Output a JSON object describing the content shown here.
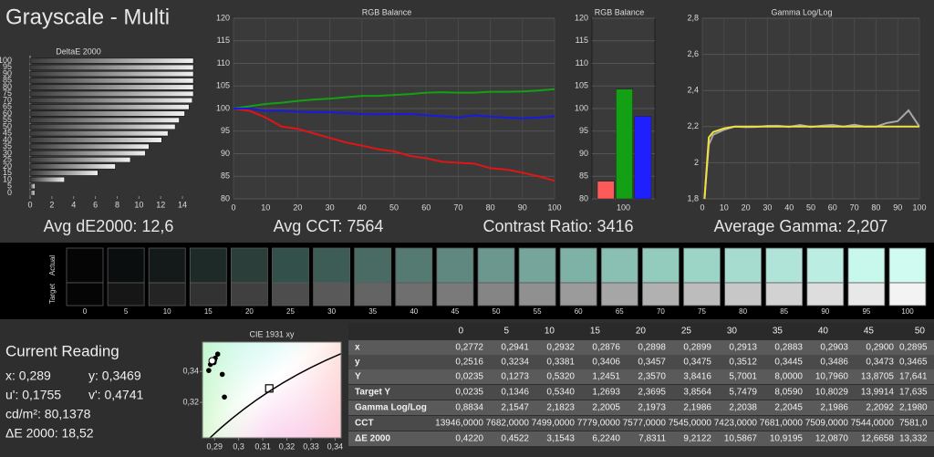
{
  "title": "Grayscale - Multi",
  "summary": [
    "Avg dE2000: 12,6",
    "Avg CCT: 7564",
    "Contrast Ratio: 3416",
    "Average Gamma: 2,207"
  ],
  "chart_data": [
    {
      "type": "bar",
      "orientation": "horizontal",
      "title": "DeltaE 2000",
      "categories": [
        "0",
        "5",
        "10",
        "15",
        "20",
        "25",
        "30",
        "35",
        "40",
        "45",
        "50",
        "55",
        "60",
        "65",
        "70",
        "75",
        "80",
        "85",
        "90",
        "95",
        "100"
      ],
      "values": [
        0.422,
        0.4522,
        3.1543,
        6.224,
        7.8311,
        9.2122,
        10.5867,
        10.9195,
        12.087,
        12.6658,
        13.33,
        13.7,
        14.2,
        14.6,
        14.9,
        15,
        15,
        15,
        15,
        15,
        15
      ],
      "color": "#f0f0f0",
      "xlim": [
        0,
        15
      ],
      "xticks": [
        0,
        2,
        4,
        6,
        8,
        10,
        12,
        14
      ],
      "grid": false
    },
    {
      "type": "line",
      "title": "RGB Balance",
      "x": [
        0,
        5,
        10,
        15,
        20,
        25,
        30,
        35,
        40,
        45,
        50,
        55,
        60,
        65,
        70,
        75,
        80,
        85,
        90,
        95,
        100
      ],
      "series": [
        {
          "color": "#e01515",
          "values": [
            100,
            99.5,
            98,
            96,
            95.5,
            94.5,
            93.5,
            92.5,
            91.8,
            91,
            90.5,
            89.5,
            89,
            88.2,
            88,
            87.8,
            86.8,
            86.5,
            85.8,
            85,
            84
          ]
        },
        {
          "color": "#14a014",
          "values": [
            100,
            100.5,
            101,
            101.3,
            101.7,
            102,
            102.2,
            102.5,
            102.8,
            102.8,
            103,
            103.2,
            103.5,
            103.6,
            103.5,
            103.5,
            103.7,
            103.7,
            103.8,
            104,
            104.3
          ]
        },
        {
          "color": "#1a1ae0",
          "values": [
            100,
            100,
            99.5,
            99.5,
            99.3,
            99.2,
            99.2,
            99,
            98.8,
            98.7,
            98.8,
            98.8,
            98.5,
            98.3,
            98,
            98.5,
            98.2,
            98,
            97.8,
            98,
            98.3
          ]
        }
      ],
      "xlim": [
        0,
        100
      ],
      "xticks": [
        0,
        10,
        20,
        30,
        40,
        50,
        60,
        70,
        80,
        90,
        100
      ],
      "ylim": [
        80,
        120
      ],
      "yticks": [
        80,
        85,
        90,
        95,
        100,
        105,
        110,
        115,
        120
      ],
      "grid": true
    },
    {
      "type": "bar",
      "title": "RGB Balance",
      "categories": [
        "100"
      ],
      "series": [
        {
          "color": "#ff5a5a",
          "values": [
            83.9
          ]
        },
        {
          "color": "#14a014",
          "values": [
            104.3
          ]
        },
        {
          "color": "#2020ff",
          "values": [
            98.3
          ]
        }
      ],
      "ylim": [
        80,
        120
      ],
      "yticks": [
        80,
        85,
        90,
        95,
        100,
        105,
        110,
        115,
        120
      ],
      "grid": true
    },
    {
      "type": "line",
      "title": "Gamma Log/Log",
      "x": [
        1,
        3,
        5,
        10,
        15,
        20,
        25,
        30,
        35,
        40,
        45,
        50,
        55,
        60,
        65,
        70,
        75,
        80,
        85,
        90,
        95,
        100
      ],
      "series": [
        {
          "color": "#a8a8a8",
          "values": [
            1.8,
            2.1,
            2.1547,
            2.1823,
            2.2005,
            2.1973,
            2.1986,
            2.2038,
            2.2045,
            2.1986,
            2.2092,
            2.198,
            2.205,
            2.21,
            2.2,
            2.21,
            2.2,
            2.2,
            2.22,
            2.23,
            2.29,
            2.2
          ]
        },
        {
          "color": "#f0e040",
          "values": [
            1.8,
            2.14,
            2.17,
            2.19,
            2.2,
            2.2,
            2.2,
            2.2,
            2.2,
            2.2,
            2.2,
            2.2,
            2.2,
            2.2,
            2.2,
            2.2,
            2.2,
            2.2,
            2.2,
            2.2,
            2.2,
            2.2
          ]
        }
      ],
      "xlim": [
        0,
        100
      ],
      "xticks": [
        0,
        10,
        20,
        30,
        40,
        50,
        60,
        70,
        80,
        90,
        100
      ],
      "ylim": [
        1.8,
        2.8
      ],
      "yticks": [
        {
          "value": 1.8,
          "label": "1,8"
        },
        2,
        {
          "value": 2.2,
          "label": "2,2"
        },
        {
          "value": 2.4,
          "label": "2,4"
        },
        {
          "value": 2.6,
          "label": "2,6"
        },
        {
          "value": 2.8,
          "label": "2,8"
        }
      ],
      "grid": true
    },
    {
      "type": "scatter",
      "title": "CIE 1931 xy",
      "x": [
        0.2941,
        0.2932,
        0.2876,
        0.2898,
        0.2899,
        0.2913,
        0.2883,
        0.2903,
        0.29,
        0.2895
      ],
      "values": [
        0.3234,
        0.3381,
        0.3406,
        0.3457,
        0.3475,
        0.3512,
        0.3445,
        0.3486,
        0.3473,
        0.3465
      ],
      "current": {
        "x": 0.289,
        "y": 0.3469
      },
      "reference": {
        "x": 0.3127,
        "y": 0.329
      },
      "color": "#000000",
      "xlim": [
        0.285,
        0.3425
      ],
      "xticks": [
        {
          "value": 0.29,
          "label": "0,29"
        },
        {
          "value": 0.3,
          "label": "0,3"
        },
        {
          "value": 0.31,
          "label": "0,31"
        },
        {
          "value": 0.32,
          "label": "0,32"
        },
        {
          "value": 0.33,
          "label": "0,33"
        },
        {
          "value": 0.34,
          "label": "0,34"
        }
      ],
      "ylim": [
        0.297,
        0.359
      ],
      "yticks": [
        {
          "value": 0.32,
          "label": "0,32"
        },
        {
          "value": 0.34,
          "label": "0,34"
        }
      ],
      "grid": false
    }
  ],
  "swatches": {
    "row_labels": [
      "Actual",
      "Target"
    ],
    "labels": [
      "0",
      "5",
      "10",
      "15",
      "20",
      "25",
      "30",
      "35",
      "40",
      "45",
      "50",
      "55",
      "60",
      "65",
      "70",
      "75",
      "80",
      "85",
      "90",
      "95",
      "100"
    ],
    "actual_colors": [
      "#050505",
      "#0b0e0e",
      "#141a19",
      "#1d2a28",
      "#2b3e3a",
      "#34504a",
      "#3d5c55",
      "#4a6b64",
      "#557a72",
      "#608880",
      "#6b978e",
      "#76a59b",
      "#7eb2a6",
      "#89c0b3",
      "#93cbbd",
      "#9cd5c6",
      "#a6dccf",
      "#b0e4d8",
      "#bcede2",
      "#c8f7ec",
      "#d0fbf0"
    ],
    "target_colors": [
      "#050505",
      "#161616",
      "#242424",
      "#323232",
      "#404040",
      "#4d4d4d",
      "#595959",
      "#646464",
      "#6f6f6f",
      "#7a7a7a",
      "#858585",
      "#909090",
      "#9b9b9b",
      "#a6a6a6",
      "#b1b1b1",
      "#bcbcbc",
      "#c7c7c7",
      "#d2d2d2",
      "#dddddd",
      "#e8e8e8",
      "#f3f3f3"
    ]
  },
  "current_reading": {
    "title": "Current Reading",
    "x": "x: 0,289",
    "y": "y: 0,3469",
    "u": "u': 0,1755",
    "v": "v': 0,4741",
    "luminance": "cd/m²: 80,1378",
    "delta_e": "ΔE 2000: 18,52"
  },
  "table": {
    "header": [
      "0",
      "5",
      "10",
      "15",
      "20",
      "25",
      "30",
      "35",
      "40",
      "45",
      "50"
    ],
    "rows": [
      [
        "x",
        "0,2772",
        "0,2941",
        "0,2932",
        "0,2876",
        "0,2898",
        "0,2899",
        "0,2913",
        "0,2883",
        "0,2903",
        "0,2900",
        "0,2895"
      ],
      [
        "y",
        "0,2516",
        "0,3234",
        "0,3381",
        "0,3406",
        "0,3457",
        "0,3475",
        "0,3512",
        "0,3445",
        "0,3486",
        "0,3473",
        "0,3465"
      ],
      [
        "Y",
        "0,0235",
        "0,1273",
        "0,5320",
        "1,2451",
        "2,3570",
        "3,8416",
        "5,7001",
        "8,0000",
        "10,7960",
        "13,8705",
        "17,641"
      ],
      [
        "Target Y",
        "0,0235",
        "0,1346",
        "0,5340",
        "1,2693",
        "2,3695",
        "3,8564",
        "5,7479",
        "8,0590",
        "10,8029",
        "13,9914",
        "17,635"
      ],
      [
        "Gamma Log/Log",
        "0,8834",
        "2,1547",
        "2,1823",
        "2,2005",
        "2,1973",
        "2,1986",
        "2,2038",
        "2,2045",
        "2,1986",
        "2,2092",
        "2,1980"
      ],
      [
        "CCT",
        "13946,0000",
        "7682,0000",
        "7499,0000",
        "7779,0000",
        "7577,0000",
        "7545,0000",
        "7423,0000",
        "7681,0000",
        "7509,0000",
        "7544,0000",
        "7581,0"
      ],
      [
        "ΔE 2000",
        "0,4220",
        "0,4522",
        "3,1543",
        "6,2240",
        "7,8311",
        "9,2122",
        "10,5867",
        "10,9195",
        "12,0870",
        "12,6658",
        "13,332"
      ]
    ]
  }
}
